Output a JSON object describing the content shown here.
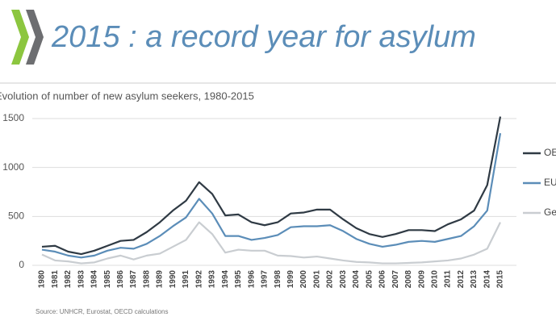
{
  "slide_title": "2015 : a record year for asylum",
  "source": "Source: UNHCR, Eurostat, OECD calculations",
  "chart_data": {
    "type": "line",
    "title": "Evolution of number of new asylum seekers, 1980-2015",
    "categories": [
      "1980",
      "1981",
      "1982",
      "1983",
      "1984",
      "1985",
      "1986",
      "1987",
      "1988",
      "1989",
      "1990",
      "1991",
      "1992",
      "1993",
      "1994",
      "1995",
      "1996",
      "1997",
      "1998",
      "1999",
      "2000",
      "2001",
      "2002",
      "2003",
      "2004",
      "2005",
      "2006",
      "2007",
      "2008",
      "2009",
      "2010",
      "2011",
      "2012",
      "2013",
      "2014",
      "2015"
    ],
    "series": [
      {
        "name": "OECD",
        "color": "#2f3a44",
        "values": [
          190,
          200,
          140,
          115,
          150,
          200,
          250,
          260,
          340,
          440,
          560,
          660,
          850,
          730,
          510,
          520,
          440,
          410,
          440,
          530,
          540,
          570,
          570,
          470,
          380,
          320,
          290,
          320,
          360,
          360,
          350,
          420,
          470,
          560,
          820,
          1520
        ]
      },
      {
        "name": "EU",
        "color": "#5b8db8",
        "values": [
          160,
          140,
          100,
          80,
          100,
          150,
          180,
          170,
          220,
          300,
          400,
          490,
          680,
          530,
          300,
          300,
          260,
          280,
          310,
          390,
          400,
          400,
          410,
          350,
          270,
          220,
          190,
          210,
          240,
          250,
          240,
          270,
          300,
          400,
          560,
          1350
        ]
      },
      {
        "name": "Germany",
        "color": "#c9cdd1",
        "values": [
          110,
          50,
          40,
          20,
          30,
          70,
          100,
          60,
          100,
          120,
          190,
          260,
          440,
          320,
          130,
          160,
          150,
          150,
          100,
          95,
          80,
          90,
          70,
          50,
          35,
          30,
          20,
          20,
          25,
          30,
          40,
          50,
          70,
          110,
          170,
          440
        ]
      }
    ],
    "ylim": [
      0,
      1500
    ],
    "yticks": [
      0,
      500,
      1000,
      1500
    ],
    "grid": true
  }
}
